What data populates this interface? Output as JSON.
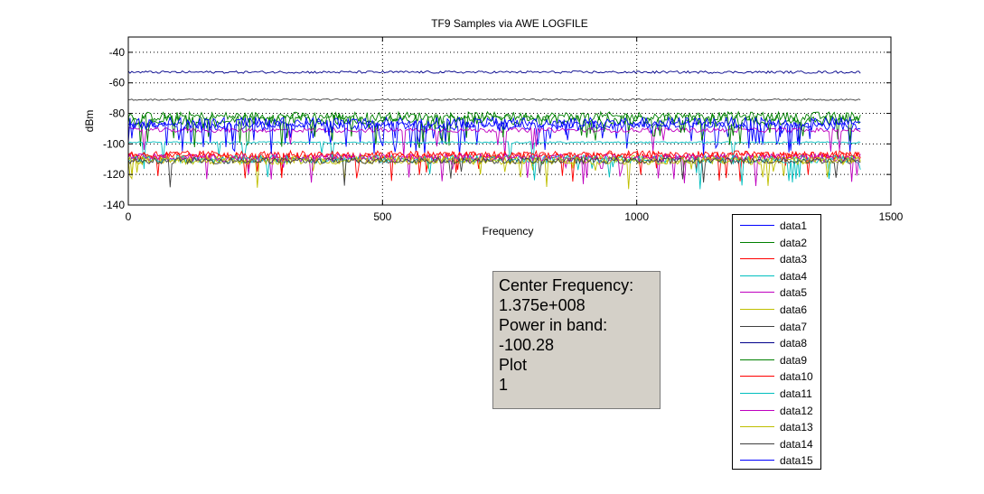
{
  "chart_data": {
    "type": "line",
    "title": "TF9 Samples via AWE LOGFILE",
    "xlabel": "Frequency",
    "ylabel": "dBm",
    "xlim": [
      0,
      1500
    ],
    "ylim": [
      -140,
      -30
    ],
    "xticks": [
      0,
      500,
      1000,
      1500
    ],
    "yticks": [
      -40,
      -60,
      -80,
      -100,
      -120,
      -140
    ],
    "grid": "dotted",
    "legend_position": "outside-right",
    "x_range": [
      0,
      1440
    ],
    "series": [
      {
        "name": "data1",
        "color": "#0000ff",
        "mean": -88,
        "noise": 3,
        "dips": 8
      },
      {
        "name": "data2",
        "color": "#008000",
        "mean": -82,
        "noise": 3,
        "dips": 6
      },
      {
        "name": "data3",
        "color": "#ff0000",
        "mean": -108,
        "noise": 2.5,
        "dips": 3
      },
      {
        "name": "data4",
        "color": "#00bfbf",
        "mean": -99,
        "noise": 0.5,
        "dips": 2
      },
      {
        "name": "data5",
        "color": "#bf00bf",
        "mean": -91,
        "noise": 1.5,
        "dips": 3
      },
      {
        "name": "data6",
        "color": "#bfbf00",
        "mean": -110,
        "noise": 2.5,
        "dips": 3
      },
      {
        "name": "data7",
        "color": "#404040",
        "mean": -71,
        "noise": 0.5,
        "dips": 0
      },
      {
        "name": "data8",
        "color": "#00008b",
        "mean": -53,
        "noise": 0.8,
        "dips": 0
      },
      {
        "name": "data9",
        "color": "#008000",
        "mean": -84,
        "noise": 3.5,
        "dips": 7
      },
      {
        "name": "data10",
        "color": "#ff0000",
        "mean": -107,
        "noise": 2.5,
        "dips": 3
      },
      {
        "name": "data11",
        "color": "#00bfbf",
        "mean": -110,
        "noise": 2.5,
        "dips": 3
      },
      {
        "name": "data12",
        "color": "#bf00bf",
        "mean": -109,
        "noise": 2.5,
        "dips": 3
      },
      {
        "name": "data13",
        "color": "#bfbf00",
        "mean": -111,
        "noise": 2.5,
        "dips": 3
      },
      {
        "name": "data14",
        "color": "#404040",
        "mean": -111,
        "noise": 2.0,
        "dips": 2
      },
      {
        "name": "data15",
        "color": "#0000ff",
        "mean": -86,
        "noise": 3.5,
        "dips": 9
      }
    ]
  },
  "info_box": {
    "lines": [
      "Center Frequency:",
      "1.375e+008",
      "Power in band:",
      "-100.28",
      "Plot",
      "1"
    ]
  }
}
